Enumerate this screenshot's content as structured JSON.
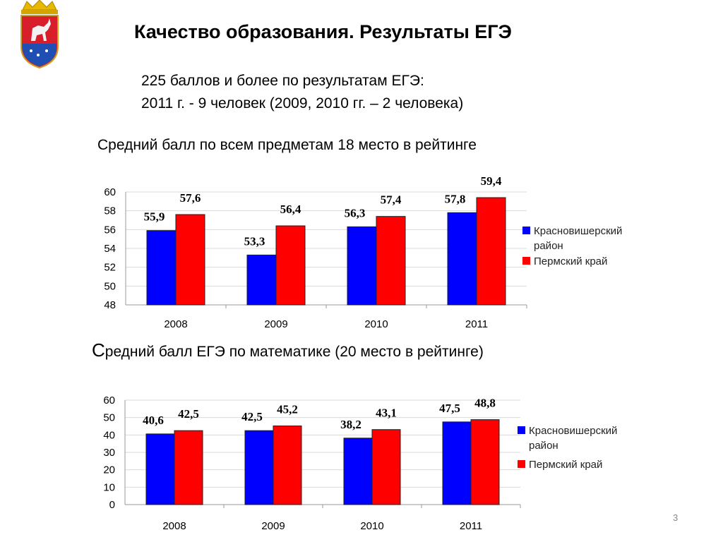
{
  "slide": {
    "title": "Качество образования.  Результаты ЕГЭ",
    "note_line1": "225 баллов и более по результатам ЕГЭ:",
    "note_line2": "2011 г. - 9 человек (2009, 2010 гг. – 2 человека)",
    "chart1_caption": "Средний балл по всем предметам 18 место в рейтинге",
    "chart2_caption_initial": "С",
    "chart2_caption_rest": "редний балл ЕГЭ по математике (20 место в рейтинге)",
    "page_number": "3",
    "coat_of_arms_icon": "coat-of-arms-icon"
  },
  "colors": {
    "series1": "#0000ff",
    "series2": "#ff0000",
    "grid": "#d9d9d9"
  },
  "chart_data": [
    {
      "type": "bar",
      "categories": [
        "2008",
        "2009",
        "2010",
        "2011"
      ],
      "series": [
        {
          "name": "Красновишерский район",
          "values": [
            55.9,
            53.3,
            56.3,
            57.8
          ],
          "labels": [
            "55,9",
            "53,3",
            "56,3",
            "57,8"
          ]
        },
        {
          "name": "Пермский край",
          "values": [
            57.6,
            56.4,
            57.4,
            59.4
          ],
          "labels": [
            "57,6",
            "56,4",
            "57,4",
            "59,4"
          ]
        }
      ],
      "ylim": [
        48,
        60
      ],
      "yticks": [
        "48",
        "50",
        "52",
        "54",
        "56",
        "58",
        "60"
      ],
      "ytick_values": [
        48,
        50,
        52,
        54,
        56,
        58,
        60
      ],
      "grid": true,
      "legend": "right"
    },
    {
      "type": "bar",
      "categories": [
        "2008",
        "2009",
        "2010",
        "2011"
      ],
      "series": [
        {
          "name": "Красновишерский район",
          "values": [
            40.6,
            42.5,
            38.2,
            47.5
          ],
          "labels": [
            "40,6",
            "42,5",
            "38,2",
            "47,5"
          ]
        },
        {
          "name": "Пермский край",
          "values": [
            42.5,
            45.2,
            43.1,
            48.8
          ],
          "labels": [
            "42,5",
            "45,2",
            "43,1",
            "48,8"
          ]
        }
      ],
      "ylim": [
        0,
        60
      ],
      "yticks": [
        "0",
        "10",
        "20",
        "30",
        "40",
        "50",
        "60"
      ],
      "ytick_values": [
        0,
        10,
        20,
        30,
        40,
        50,
        60
      ],
      "grid": true,
      "legend": "right"
    }
  ]
}
